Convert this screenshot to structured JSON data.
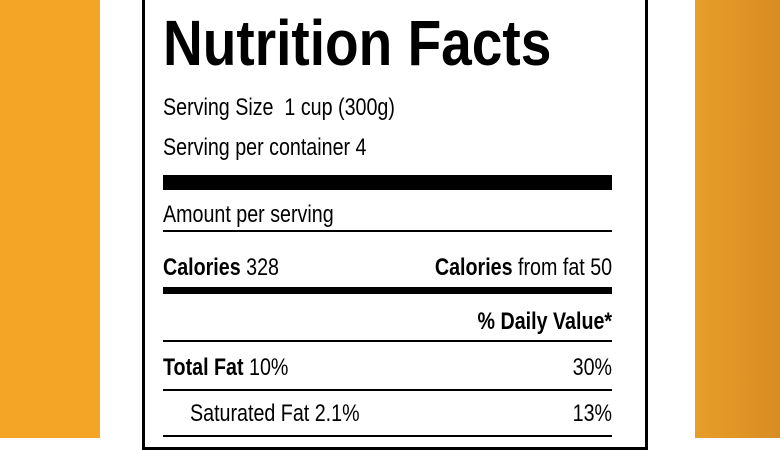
{
  "label": {
    "title": "Nutrition Facts",
    "serving_size": "Serving Size  1 cup (300g)",
    "servings_per_container": "Serving per container 4",
    "amount_per_serving": "Amount per serving",
    "calories": {
      "label": "Calories",
      "value": "328"
    },
    "calories_from_fat": {
      "label": "Calories",
      "value": "from fat 50"
    },
    "daily_value_header": "% Daily Value*",
    "rows": [
      {
        "label": "Total Fat",
        "amount": "10%",
        "daily_value": "30%",
        "bold": true
      },
      {
        "label": "Saturated Fat",
        "amount": "2.1%",
        "daily_value": "13%",
        "bold": false
      }
    ]
  }
}
